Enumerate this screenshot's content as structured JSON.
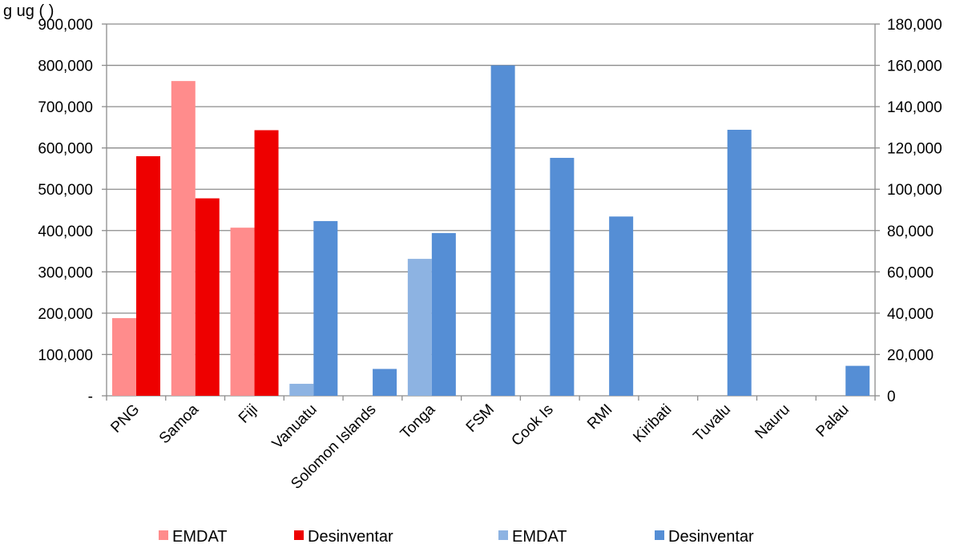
{
  "chart_data": {
    "type": "bar",
    "title_fragment": "g     ug  (           )",
    "categories": [
      "PNG",
      "Samoa",
      "Fiji",
      "Vanuatu",
      "Solomon Islands",
      "Tonga",
      "FSM",
      "Cook Is",
      "RMI",
      "Kiribati",
      "Tuvalu",
      "Nauru",
      "Palau"
    ],
    "left_axis": {
      "min": 0,
      "max": 900000,
      "step": 100000,
      "tick_labels": [
        "-",
        "100,000",
        "200,000",
        "300,000",
        "400,000",
        "500,000",
        "600,000",
        "700,000",
        "800,000",
        "900,000"
      ]
    },
    "right_axis": {
      "min": 0,
      "max": 180000,
      "step": 20000,
      "tick_labels": [
        "0",
        "20,000",
        "40,000",
        "60,000",
        "80,000",
        "100,000",
        "120,000",
        "140,000",
        "160,000",
        "180,000"
      ]
    },
    "grid": true,
    "legend_position": "bottom",
    "series": [
      {
        "name": "EMDAT",
        "axis": "left",
        "slot": 0,
        "color": "#ff8c8c",
        "values": [
          188000,
          762000,
          407000,
          null,
          null,
          null,
          null,
          null,
          null,
          null,
          null,
          null,
          null
        ]
      },
      {
        "name": "Desinventar",
        "axis": "left",
        "slot": 1,
        "color": "#ee0000",
        "values": [
          580000,
          478000,
          643000,
          null,
          null,
          null,
          null,
          null,
          null,
          null,
          null,
          null,
          null
        ]
      },
      {
        "name": "EMDAT",
        "axis": "right",
        "slot": 0,
        "color": "#8db3e2",
        "values": [
          null,
          null,
          null,
          5800,
          0,
          66300,
          0,
          0,
          0,
          0,
          0,
          0,
          0
        ]
      },
      {
        "name": "Desinventar",
        "axis": "right",
        "slot": 1,
        "color": "#558ed5",
        "values": [
          null,
          null,
          null,
          84600,
          13000,
          78800,
          160000,
          115200,
          86800,
          0,
          128800,
          0,
          14500
        ]
      }
    ]
  }
}
